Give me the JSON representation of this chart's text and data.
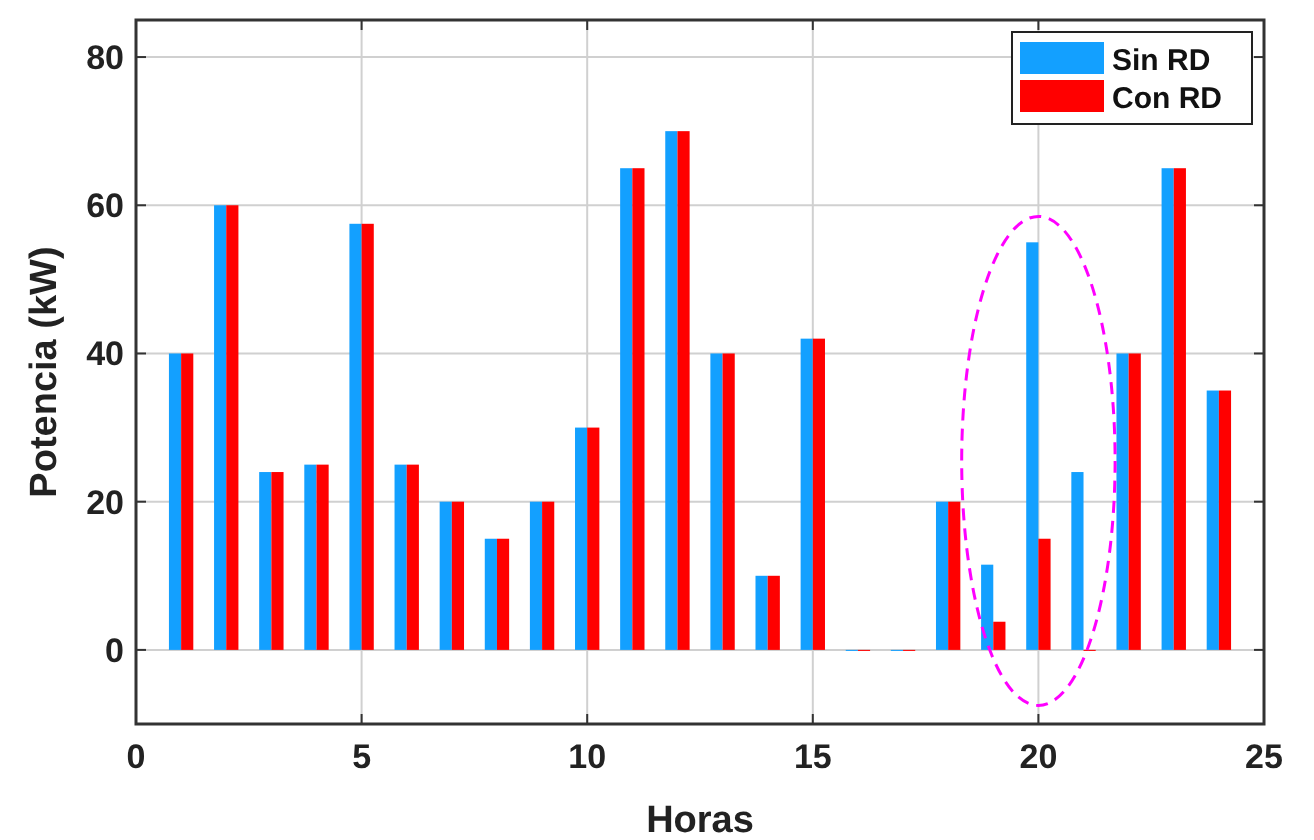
{
  "chart_data": {
    "type": "bar",
    "xlabel": "Horas",
    "ylabel": "Potencia (kW)",
    "x": [
      1,
      2,
      3,
      4,
      5,
      6,
      7,
      8,
      9,
      10,
      11,
      12,
      13,
      14,
      15,
      16,
      17,
      18,
      19,
      20,
      21,
      22,
      23,
      24
    ],
    "series": [
      {
        "name": "Sin RD",
        "color": "#13a0ff",
        "values": [
          40,
          60,
          24,
          25,
          57.5,
          25,
          20,
          15,
          20,
          30,
          65,
          70,
          40,
          10,
          42,
          0,
          0,
          20,
          11.5,
          55,
          24,
          40,
          65,
          35
        ]
      },
      {
        "name": "Con RD",
        "color": "#ff0000",
        "values": [
          40,
          60,
          24,
          25,
          57.5,
          25,
          20,
          15,
          20,
          30,
          65,
          70,
          40,
          10,
          42,
          0,
          0,
          20,
          3.8,
          15,
          0,
          40,
          65,
          35
        ]
      }
    ],
    "xlim": [
      0,
      25
    ],
    "xticks": [
      0,
      5,
      10,
      15,
      20,
      25
    ],
    "ylim": [
      -10,
      85
    ],
    "yticks": [
      0,
      20,
      40,
      60,
      80
    ],
    "grid": true,
    "legend": "top right"
  }
}
